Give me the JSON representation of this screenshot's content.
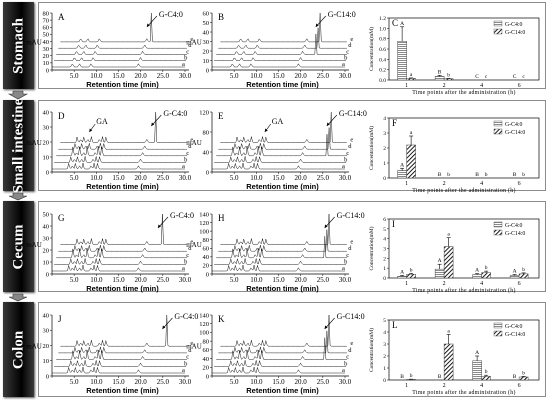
{
  "organs": [
    "Stomach",
    "Small intestine",
    "Cecum",
    "Colon"
  ],
  "chrom": {
    "ylabel": "mAU",
    "xlabel": "Retention time (min)",
    "xticks": [
      "0.0",
      "5.0",
      "10.0",
      "15.0",
      "20.0",
      "25.0",
      "30.0"
    ],
    "trace_letters": [
      "a",
      "b",
      "c",
      "d",
      "e"
    ],
    "panels": [
      {
        "id": "A",
        "peak": "G-C4:0",
        "yticks": [
          "0",
          "10",
          "20",
          "30",
          "40",
          "50",
          "60",
          "70",
          "80"
        ]
      },
      {
        "id": "B",
        "peak": "G-C14:0",
        "yticks": [
          "0",
          "10",
          "20",
          "30",
          "40",
          "50",
          "60"
        ]
      },
      {
        "id": "D",
        "peak": "G-C4:0",
        "extra": "GA",
        "yticks": [
          "0",
          "10",
          "20",
          "30",
          "40"
        ]
      },
      {
        "id": "E",
        "peak": "G-C14:0",
        "extra": "GA",
        "yticks": [
          "0",
          "40",
          "80",
          "120"
        ]
      },
      {
        "id": "G",
        "peak": "G-C4:0",
        "yticks": [
          "0",
          "10",
          "20",
          "30",
          "40",
          "50"
        ]
      },
      {
        "id": "H",
        "peak": "G-C14:0",
        "yticks": [
          "0",
          "20",
          "40",
          "60",
          "80",
          "100",
          "120",
          "140"
        ]
      },
      {
        "id": "J",
        "peak": "G-C4:0",
        "yticks": [
          "0",
          "10",
          "20",
          "30",
          "40"
        ]
      },
      {
        "id": "K",
        "peak": "G-C14:0",
        "yticks": [
          "0",
          "20",
          "40",
          "60",
          "80",
          "100",
          "120",
          "140"
        ]
      }
    ]
  },
  "chart_data": [
    {
      "type": "bar",
      "panel": "C",
      "categories": [
        "1",
        "2",
        "4",
        "6"
      ],
      "series": [
        {
          "name": "G-C4:0",
          "values": [
            0.75,
            0.07,
            0,
            0
          ]
        },
        {
          "name": "G-C14:0",
          "values": [
            0.03,
            0.025,
            0,
            0
          ]
        }
      ],
      "errors": [
        [
          0.28,
          0.02,
          0,
          0
        ],
        [
          0.01,
          0.005,
          0,
          0
        ]
      ],
      "sig": [
        [
          "A",
          "B",
          "C",
          "C"
        ],
        [
          "a",
          "b",
          "c",
          "c"
        ]
      ],
      "yticks": [
        "0.0",
        "0.2",
        "0.4",
        "0.6",
        "0.8",
        "1.0",
        "1.2"
      ],
      "ylim": [
        0,
        1.2
      ],
      "ylabel": "Concentration(mM)",
      "xlabel": "Time points after the administration (h)",
      "legend": "top-right"
    },
    {
      "type": "bar",
      "panel": "F",
      "categories": [
        "1",
        "2",
        "4",
        "6"
      ],
      "series": [
        {
          "name": "G-C4:0",
          "values": [
            0.5,
            0,
            0,
            0
          ]
        },
        {
          "name": "G-C14:0",
          "values": [
            2.2,
            0,
            0,
            0
          ]
        }
      ],
      "errors": [
        [
          0.15,
          0,
          0,
          0
        ],
        [
          0.6,
          0,
          0,
          0
        ]
      ],
      "sig": [
        [
          "A",
          "B",
          "B",
          "B"
        ],
        [
          "a",
          "b",
          "b",
          "b"
        ]
      ],
      "yticks": [
        "0",
        "1",
        "2",
        "3",
        "4"
      ],
      "ylim": [
        0,
        4
      ],
      "ylabel": "Concentration(mM)",
      "xlabel": "Time points after the administration (h)",
      "legend": "top-right"
    },
    {
      "type": "bar",
      "panel": "I",
      "categories": [
        "1",
        "2",
        "4",
        "6"
      ],
      "series": [
        {
          "name": "G-C4:0",
          "values": [
            0.18,
            0.9,
            0.35,
            0.25
          ]
        },
        {
          "name": "G-C14:0",
          "values": [
            0.38,
            3.2,
            0.55,
            0.42
          ]
        }
      ],
      "errors": [
        [
          0.08,
          0.5,
          0.1,
          0.1
        ],
        [
          0.1,
          0.9,
          0.15,
          0.1
        ]
      ],
      "sig": [
        [
          "A",
          "A",
          "A",
          "A"
        ],
        [
          "b",
          "a",
          "b",
          "b"
        ]
      ],
      "yticks": [
        "0",
        "1",
        "2",
        "3",
        "4",
        "5",
        "6"
      ],
      "ylim": [
        0,
        6
      ],
      "ylabel": "Concentration(mM)",
      "xlabel": "Time points after the administration (h)",
      "legend": "top-right"
    },
    {
      "type": "bar",
      "panel": "L",
      "categories": [
        "1",
        "2",
        "4",
        "6"
      ],
      "series": [
        {
          "name": "G-C4:0",
          "values": [
            0,
            0,
            1.6,
            0
          ]
        },
        {
          "name": "G-C14:0",
          "values": [
            0.05,
            3.0,
            0.3,
            0.25
          ]
        }
      ],
      "errors": [
        [
          0,
          0,
          0.4,
          0
        ],
        [
          0.02,
          0.8,
          0.1,
          0.05
        ]
      ],
      "sig": [
        [
          "B",
          "B",
          "A",
          "B"
        ],
        [
          "b",
          "a",
          "b",
          "b"
        ]
      ],
      "yticks": [
        "0",
        "1",
        "2",
        "3",
        "4",
        "5"
      ],
      "ylim": [
        0,
        5
      ],
      "ylabel": "Concentration(mM)",
      "xlabel": "Time points after the administration (h)",
      "legend": "top-right"
    }
  ]
}
